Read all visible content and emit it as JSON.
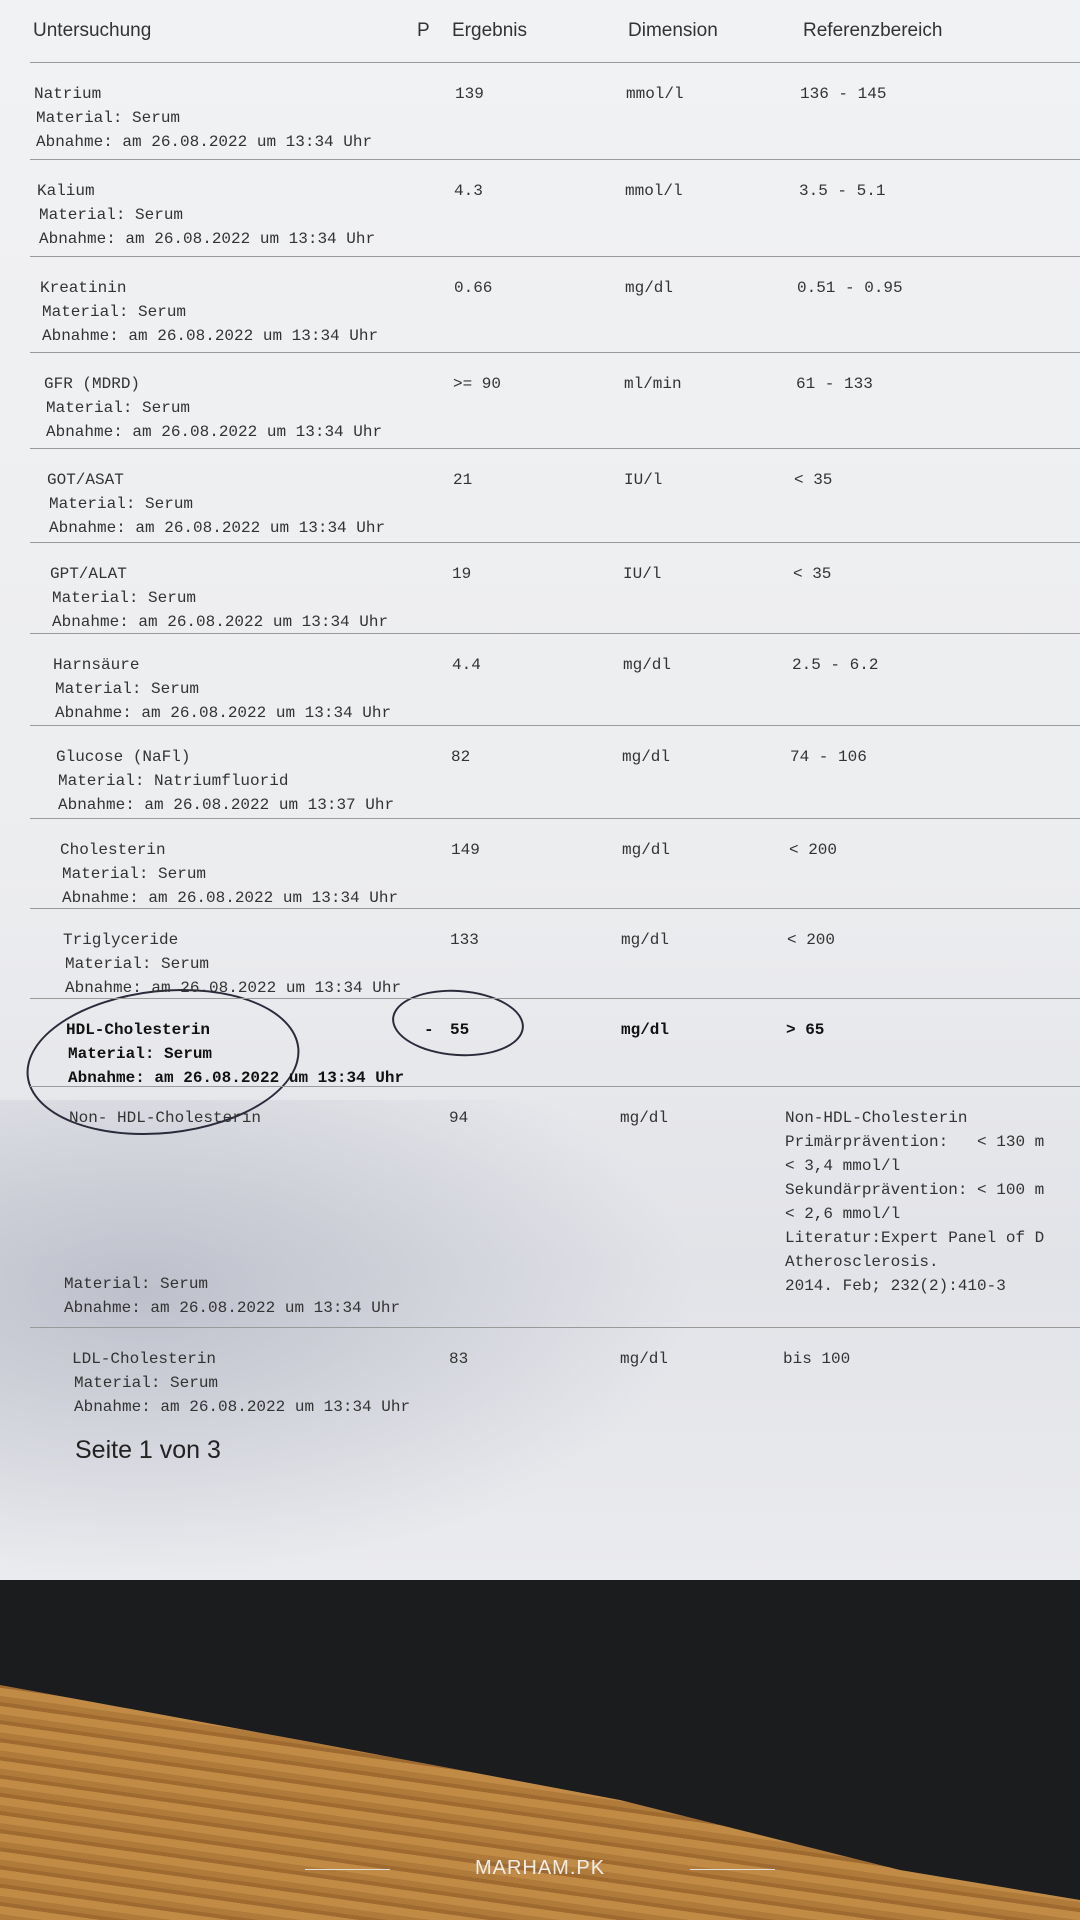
{
  "header": {
    "untersuchung": "Untersuchung",
    "p": "P",
    "ergebnis": "Ergebnis",
    "dimension": "Dimension",
    "referenzbereich": "Referenzbereich"
  },
  "rows": [
    {
      "name": "Natrium",
      "material": "Material: Serum",
      "abnahme": "Abnahme: am 26.08.2022 um 13:34 Uhr",
      "flag": "",
      "result": "139",
      "unit": "mmol/l",
      "ref": "136 - 145"
    },
    {
      "name": "Kalium",
      "material": "Material: Serum",
      "abnahme": "Abnahme: am 26.08.2022 um 13:34 Uhr",
      "flag": "",
      "result": "4.3",
      "unit": "mmol/l",
      "ref": "3.5 - 5.1"
    },
    {
      "name": "Kreatinin",
      "material": "Material: Serum",
      "abnahme": "Abnahme: am 26.08.2022 um 13:34 Uhr",
      "flag": "",
      "result": "0.66",
      "unit": "mg/dl",
      "ref": "0.51 - 0.95"
    },
    {
      "name": "GFR (MDRD)",
      "material": "Material: Serum",
      "abnahme": "Abnahme: am 26.08.2022 um 13:34 Uhr",
      "flag": "",
      "result": ">= 90",
      "unit": "ml/min",
      "ref": "61 - 133"
    },
    {
      "name": "GOT/ASAT",
      "material": "Material: Serum",
      "abnahme": "Abnahme: am 26.08.2022 um 13:34 Uhr",
      "flag": "",
      "result": "21",
      "unit": "IU/l",
      "ref": "< 35"
    },
    {
      "name": "GPT/ALAT",
      "material": "Material: Serum",
      "abnahme": "Abnahme: am 26.08.2022 um 13:34 Uhr",
      "flag": "",
      "result": "19",
      "unit": "IU/l",
      "ref": "< 35"
    },
    {
      "name": "Harnsäure",
      "material": "Material: Serum",
      "abnahme": "Abnahme: am 26.08.2022 um 13:34 Uhr",
      "flag": "",
      "result": "4.4",
      "unit": "mg/dl",
      "ref": "2.5 - 6.2"
    },
    {
      "name": "Glucose (NaFl)",
      "material": "Material: Natriumfluorid",
      "abnahme": "Abnahme: am 26.08.2022 um 13:37 Uhr",
      "flag": "",
      "result": "82",
      "unit": "mg/dl",
      "ref": "74 - 106"
    },
    {
      "name": "Cholesterin",
      "material": "Material: Serum",
      "abnahme": "Abnahme: am 26.08.2022 um 13:34 Uhr",
      "flag": "",
      "result": "149",
      "unit": "mg/dl",
      "ref": "< 200"
    },
    {
      "name": "Triglyceride",
      "material": "Material: Serum",
      "abnahme": "Abnahme: am 26.08.2022 um 13:34 Uhr",
      "flag": "",
      "result": "133",
      "unit": "mg/dl",
      "ref": "< 200"
    },
    {
      "name": "HDL-Cholesterin",
      "material": "Material: Serum",
      "abnahme": "Abnahme: am 26.08.2022 um 13:34 Uhr",
      "flag": "-",
      "result": "55",
      "unit": "mg/dl",
      "ref": "> 65",
      "bold": true
    },
    {
      "name": "Non- HDL-Cholesterin",
      "material": "",
      "abnahme": "",
      "flag": "",
      "result": "94",
      "unit": "mg/dl",
      "ref": "Non-HDL-Cholesterin\nPrimärprävention:   < 130 m\n< 3,4 mmol/l\nSekundärprävention: < 100 m\n< 2,6 mmol/l\nLiteratur:Expert Panel of D\nAtherosclerosis.\n2014. Feb; 232(2):410-3",
      "material2": "Material: Serum",
      "abnahme2": "Abnahme: am 26.08.2022 um 13:34 Uhr"
    },
    {
      "name": "LDL-Cholesterin",
      "material": "Material: Serum",
      "abnahme": "Abnahme: am 26.08.2022 um 13:34 Uhr",
      "flag": "",
      "result": "83",
      "unit": "mg/dl",
      "ref": "bis 100"
    }
  ],
  "footer": {
    "page": "Seite 1 von 3"
  },
  "watermark": "MARHAM.PK"
}
